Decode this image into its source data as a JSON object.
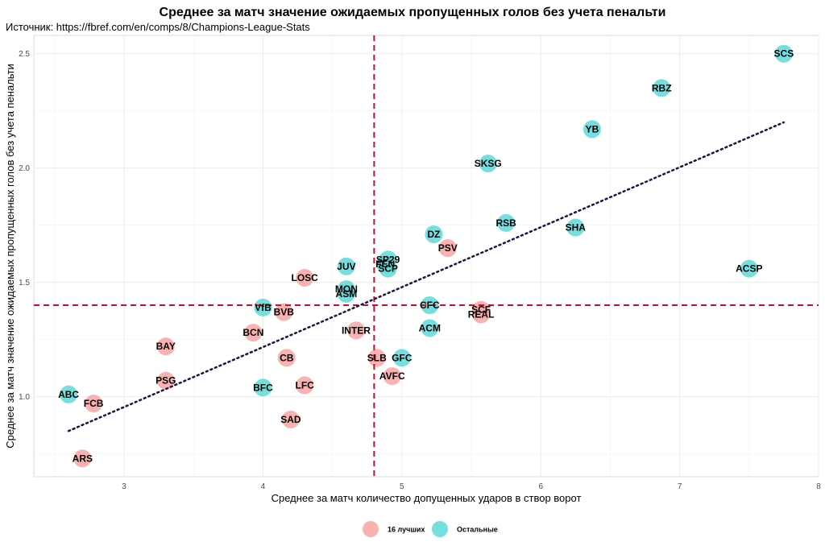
{
  "chart_data": {
    "type": "scatter",
    "title": "Среднее за матч значение ожидаемых пропущенных голов без учета пенальти",
    "subtitle": "Источник: https://fbref.com/en/comps/8/Champions-League-Stats",
    "xlabel": "Среднее за матч количество допущенных ударов в створ ворот",
    "ylabel": "Среднее за матч значение ожидаемых пропущенных голов без учета пенальти",
    "xlim": [
      2.35,
      8.0
    ],
    "ylim": [
      0.65,
      2.58
    ],
    "x_ticks": [
      "3",
      "4",
      "5",
      "6",
      "7",
      "8"
    ],
    "y_ticks": [
      "1.0",
      "1.5",
      "2.0",
      "2.5"
    ],
    "grid": true,
    "vline_x": 4.8,
    "hline_y": 1.4,
    "trend_line": {
      "x": [
        2.6,
        7.75
      ],
      "y": [
        0.85,
        2.2
      ]
    },
    "legend_position": "bottom",
    "series": [
      {
        "name": "16 лучших",
        "color": "#F8A5A5",
        "points": [
          {
            "label": "ARS",
            "x": 2.7,
            "y": 0.73
          },
          {
            "label": "FCB",
            "x": 2.78,
            "y": 0.97
          },
          {
            "label": "PSG",
            "x": 3.3,
            "y": 1.07
          },
          {
            "label": "BAY",
            "x": 3.3,
            "y": 1.22
          },
          {
            "label": "BCN",
            "x": 3.93,
            "y": 1.28
          },
          {
            "label": "BVB",
            "x": 4.15,
            "y": 1.37
          },
          {
            "label": "CB",
            "x": 4.17,
            "y": 1.17
          },
          {
            "label": "SAD",
            "x": 4.2,
            "y": 0.9
          },
          {
            "label": "LFC",
            "x": 4.3,
            "y": 1.05
          },
          {
            "label": "LOSC",
            "x": 4.3,
            "y": 1.52
          },
          {
            "label": "INTER",
            "x": 4.67,
            "y": 1.29
          },
          {
            "label": "SLB",
            "x": 4.82,
            "y": 1.17
          },
          {
            "label": "AVFC",
            "x": 4.93,
            "y": 1.09
          },
          {
            "label": "PSV",
            "x": 5.33,
            "y": 1.65
          },
          {
            "label": "SCF",
            "x": 5.57,
            "y": 1.38
          },
          {
            "label": "REAL",
            "x": 5.57,
            "y": 1.36
          }
        ]
      },
      {
        "name": "Остальные",
        "color": "#5DD9D9",
        "points": [
          {
            "label": "ABC",
            "x": 2.6,
            "y": 1.01
          },
          {
            "label": "BFC",
            "x": 4.0,
            "y": 1.04
          },
          {
            "label": "VfB",
            "x": 4.0,
            "y": 1.39
          },
          {
            "label": "JUV",
            "x": 4.6,
            "y": 1.57
          },
          {
            "label": "MON",
            "x": 4.6,
            "y": 1.47
          },
          {
            "label": "ASM",
            "x": 4.6,
            "y": 1.45
          },
          {
            "label": "SP29",
            "x": 4.9,
            "y": 1.6
          },
          {
            "label": "FEN",
            "x": 4.88,
            "y": 1.58
          },
          {
            "label": "SCP",
            "x": 4.9,
            "y": 1.56
          },
          {
            "label": "GFC",
            "x": 5.0,
            "y": 1.17
          },
          {
            "label": "CFC",
            "x": 5.2,
            "y": 1.4
          },
          {
            "label": "ACM",
            "x": 5.2,
            "y": 1.3
          },
          {
            "label": "DZ",
            "x": 5.23,
            "y": 1.71
          },
          {
            "label": "SKSG",
            "x": 5.62,
            "y": 2.02
          },
          {
            "label": "RSB",
            "x": 5.75,
            "y": 1.76
          },
          {
            "label": "SHA",
            "x": 6.25,
            "y": 1.74
          },
          {
            "label": "YB",
            "x": 6.37,
            "y": 2.17
          },
          {
            "label": "RBZ",
            "x": 6.87,
            "y": 2.35
          },
          {
            "label": "ACSP",
            "x": 7.5,
            "y": 1.56
          },
          {
            "label": "SCS",
            "x": 7.75,
            "y": 2.5
          }
        ]
      }
    ]
  }
}
